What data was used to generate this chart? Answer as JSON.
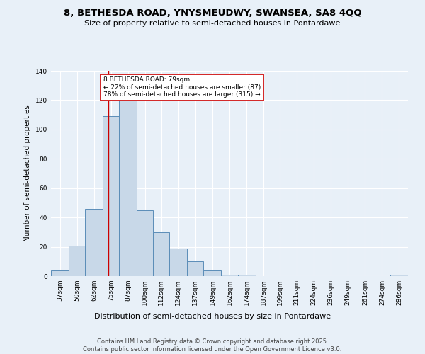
{
  "title": "8, BETHESDA ROAD, YNYSMEUDWY, SWANSEA, SA8 4QQ",
  "subtitle": "Size of property relative to semi-detached houses in Pontardawe",
  "xlabel": "Distribution of semi-detached houses by size in Pontardawe",
  "ylabel": "Number of semi-detached properties",
  "bin_labels": [
    "37sqm",
    "50sqm",
    "62sqm",
    "75sqm",
    "87sqm",
    "100sqm",
    "112sqm",
    "124sqm",
    "137sqm",
    "149sqm",
    "162sqm",
    "174sqm",
    "187sqm",
    "199sqm",
    "211sqm",
    "224sqm",
    "236sqm",
    "249sqm",
    "261sqm",
    "274sqm",
    "286sqm"
  ],
  "bin_edges": [
    37,
    50,
    62,
    75,
    87,
    100,
    112,
    124,
    137,
    149,
    162,
    174,
    187,
    199,
    211,
    224,
    236,
    249,
    261,
    274,
    286,
    299
  ],
  "bar_values": [
    4,
    21,
    46,
    109,
    122,
    45,
    30,
    19,
    10,
    4,
    1,
    1,
    0,
    0,
    0,
    0,
    0,
    0,
    0,
    0,
    1
  ],
  "bar_color": "#c8d8e8",
  "bar_edgecolor": "#5b8db8",
  "property_size": 79,
  "vline_color": "#cc0000",
  "annotation_text": "8 BETHESDA ROAD: 79sqm\n← 22% of semi-detached houses are smaller (87)\n78% of semi-detached houses are larger (315) →",
  "annotation_box_edgecolor": "#cc0000",
  "footer_line1": "Contains HM Land Registry data © Crown copyright and database right 2025.",
  "footer_line2": "Contains public sector information licensed under the Open Government Licence v3.0.",
  "bg_color": "#e8f0f8",
  "ylim": [
    0,
    140
  ],
  "yticks": [
    0,
    20,
    40,
    60,
    80,
    100,
    120,
    140
  ]
}
